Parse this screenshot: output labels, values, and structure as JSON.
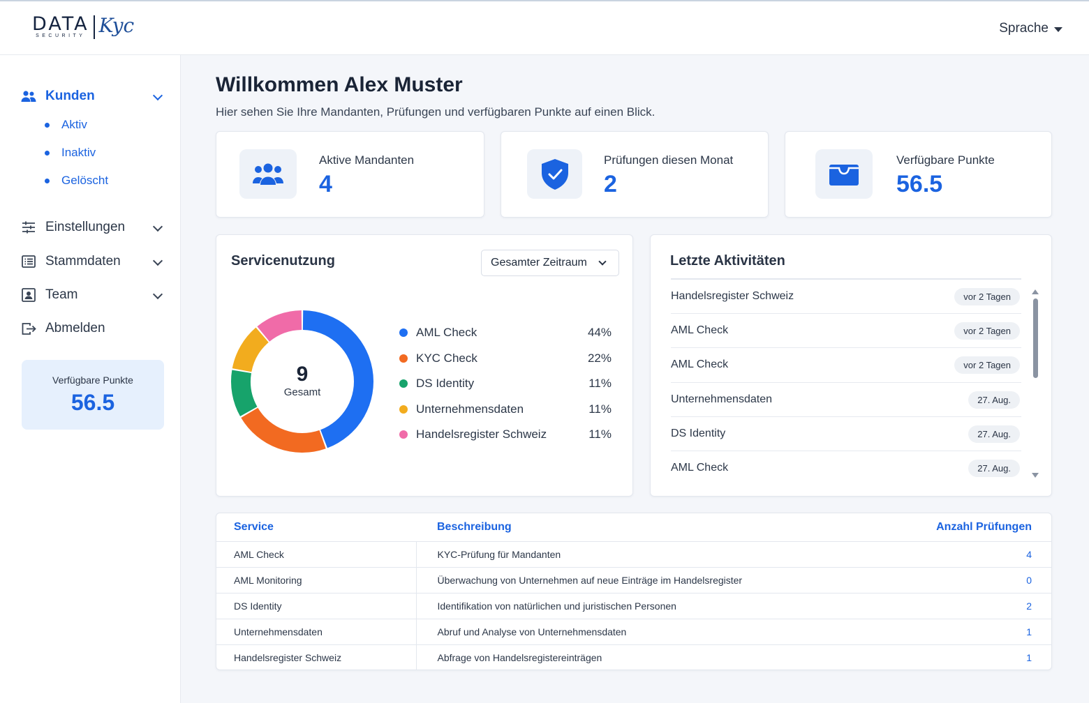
{
  "header": {
    "logo": {
      "main": "DATA",
      "sub": "SECURITY",
      "script": "Kyc"
    },
    "language_label": "Sprache"
  },
  "sidebar": {
    "items": [
      {
        "label": "Kunden",
        "icon": "users-icon",
        "active": true,
        "children": [
          {
            "label": "Aktiv"
          },
          {
            "label": "Inaktiv"
          },
          {
            "label": "Gelöscht"
          }
        ]
      },
      {
        "label": "Einstellungen",
        "icon": "sliders-icon"
      },
      {
        "label": "Stammdaten",
        "icon": "list-icon"
      },
      {
        "label": "Team",
        "icon": "contact-card-icon"
      },
      {
        "label": "Abmelden",
        "icon": "logout-icon"
      }
    ],
    "points": {
      "label": "Verfügbare Punkte",
      "value": "56.5"
    }
  },
  "main": {
    "title": "Willkommen Alex Muster",
    "subtitle": "Hier sehen Sie Ihre Mandanten, Prüfungen und verfügbaren Punkte auf einen Blick.",
    "stats": [
      {
        "label": "Aktive Mandanten",
        "value": "4",
        "icon": "users-icon"
      },
      {
        "label": "Prüfungen diesen Monat",
        "value": "2",
        "icon": "shield-check-icon"
      },
      {
        "label": "Verfügbare Punkte",
        "value": "56.5",
        "icon": "wallet-icon"
      }
    ],
    "usage": {
      "title": "Servicenutzung",
      "period_selected": "Gesamter Zeitraum",
      "total": "9",
      "total_label": "Gesamt"
    },
    "activities": {
      "title": "Letzte Aktivitäten",
      "items": [
        {
          "name": "Handelsregister Schweiz",
          "time": "vor 2 Tagen"
        },
        {
          "name": "AML Check",
          "time": "vor 2 Tagen"
        },
        {
          "name": "AML Check",
          "time": "vor 2 Tagen"
        },
        {
          "name": "Unternehmensdaten",
          "time": "27. Aug."
        },
        {
          "name": "DS Identity",
          "time": "27. Aug."
        },
        {
          "name": "AML Check",
          "time": "27. Aug."
        }
      ]
    },
    "table": {
      "headers": {
        "service": "Service",
        "description": "Beschreibung",
        "count": "Anzahl Prüfungen"
      },
      "rows": [
        {
          "service": "AML Check",
          "description": "KYC-Prüfung für Mandanten",
          "count": "4"
        },
        {
          "service": "AML Monitoring",
          "description": "Überwachung von Unternehmen auf neue Einträge im Handelsregister",
          "count": "0"
        },
        {
          "service": "DS Identity",
          "description": "Identifikation von natürlichen und juristischen Personen",
          "count": "2"
        },
        {
          "service": "Unternehmensdaten",
          "description": "Abruf und Analyse von Unternehmensdaten",
          "count": "1"
        },
        {
          "service": "Handelsregister Schweiz",
          "description": "Abfrage von Handelsregistereinträgen",
          "count": "1"
        }
      ]
    }
  },
  "chart_data": {
    "type": "pie",
    "donut": true,
    "categories": [
      "AML Check",
      "KYC Check",
      "DS Identity",
      "Unternehmensdaten",
      "Handelsregister Schweiz"
    ],
    "values": [
      44,
      22,
      11,
      11,
      11
    ],
    "value_labels": [
      "44%",
      "22%",
      "11%",
      "11%",
      "11%"
    ],
    "colors": [
      "#1e6ff2",
      "#f26a21",
      "#17a36b",
      "#f2ac1e",
      "#f06ba8"
    ],
    "legend_position": "right"
  }
}
